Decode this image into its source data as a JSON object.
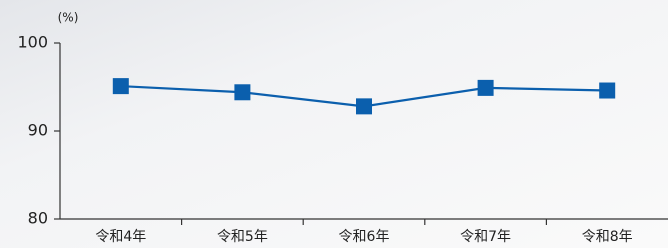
{
  "chart_data": {
    "type": "line",
    "y_label": "(%)",
    "categories": [
      "令和4年",
      "令和5年",
      "令和6年",
      "令和7年",
      "令和8年"
    ],
    "values": [
      95.1,
      94.4,
      92.8,
      94.9,
      94.6
    ],
    "color": "#0b5fad",
    "ylim": [
      80,
      100
    ],
    "yticks": [
      80,
      90,
      100
    ]
  }
}
